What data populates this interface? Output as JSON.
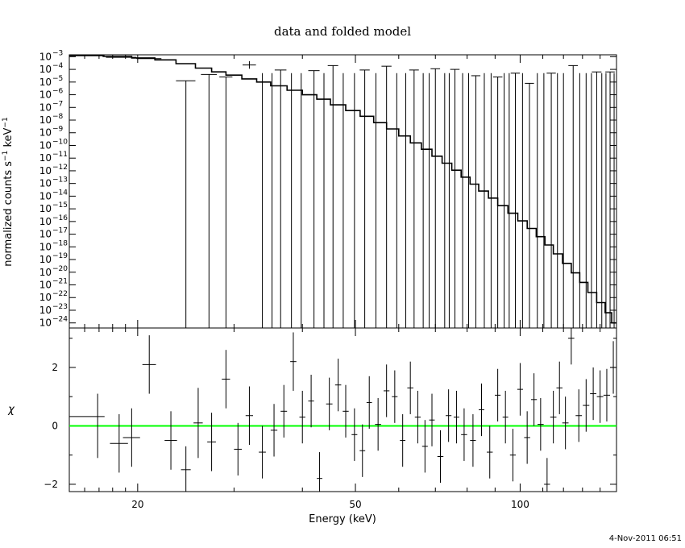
{
  "chart_data": {
    "type": "line",
    "title": "data and folded model",
    "xlabel": "Energy (keV)",
    "x_scale": "log",
    "xlim": [
      15,
      150
    ],
    "x_ticks": [
      20,
      50,
      100
    ],
    "timestamp": "4-Nov-2011 06:51",
    "top_panel": {
      "ylabel": "normalized counts s^-1 keV^-1",
      "ylabel_parts": {
        "a": "normalized counts s",
        "exp1": "−1",
        "b": " keV",
        "exp2": "−1"
      },
      "y_scale": "log",
      "ylim_log10": [
        -24.4,
        -2.85
      ],
      "y_tick_exponents": [
        -3,
        -4,
        -5,
        -6,
        -7,
        -8,
        -9,
        -10,
        -11,
        -12,
        -13,
        -14,
        -15,
        -16,
        -17,
        -18,
        -19,
        -20,
        -21,
        -22,
        -23,
        -24
      ],
      "model_steps": [
        [
          15.0,
          -2.9
        ],
        [
          17.3,
          -2.98
        ],
        [
          19.5,
          -3.1
        ],
        [
          21.5,
          -3.25
        ],
        [
          23.5,
          -3.55
        ],
        [
          25.5,
          -3.9
        ],
        [
          27.3,
          -4.2
        ],
        [
          29.0,
          -4.45
        ],
        [
          31.0,
          -4.75
        ],
        [
          33.0,
          -5.0
        ],
        [
          35.0,
          -5.3
        ],
        [
          37.5,
          -5.65
        ],
        [
          40.0,
          -6.0
        ],
        [
          42.5,
          -6.35
        ],
        [
          45.0,
          -6.8
        ],
        [
          48.0,
          -7.25
        ],
        [
          51.0,
          -7.7
        ],
        [
          54.0,
          -8.2
        ],
        [
          57.0,
          -8.7
        ],
        [
          60.0,
          -9.25
        ],
        [
          63.0,
          -9.8
        ],
        [
          66.0,
          -10.3
        ],
        [
          69.0,
          -10.85
        ],
        [
          72.0,
          -11.4
        ],
        [
          75.0,
          -11.95
        ],
        [
          78.0,
          -12.5
        ],
        [
          81.0,
          -13.05
        ],
        [
          84.0,
          -13.6
        ],
        [
          87.5,
          -14.15
        ],
        [
          91.0,
          -14.75
        ],
        [
          95.0,
          -15.35
        ],
        [
          99.0,
          -15.95
        ],
        [
          103.0,
          -16.55
        ],
        [
          107.0,
          -17.2
        ],
        [
          111.0,
          -17.85
        ],
        [
          115.0,
          -18.55
        ],
        [
          119.5,
          -19.3
        ],
        [
          124.0,
          -20.05
        ],
        [
          128.5,
          -20.8
        ],
        [
          133.0,
          -21.6
        ],
        [
          138.0,
          -22.4
        ],
        [
          143.0,
          -23.2
        ],
        [
          147.0,
          -24.0
        ],
        [
          150.0,
          -24.4
        ]
      ],
      "data_points": [
        {
          "x": 16.2,
          "xerr": 1.2,
          "y": -2.92
        },
        {
          "x": 18.7,
          "xerr": 1.2,
          "y": -3.05
        },
        {
          "x": 21.0,
          "xerr": 1.1,
          "y": -3.15
        },
        {
          "x": 24.5,
          "xerr": 1.0,
          "y": -4.9,
          "ylo": -24.4
        },
        {
          "x": 27.0,
          "xerr": 0.9,
          "y": -4.4,
          "ylo": -24.4
        },
        {
          "x": 29.0,
          "xerr": 0.8,
          "y": -4.6,
          "ylo": -24.4
        },
        {
          "x": 32.0,
          "xerr": 0.9,
          "y": -3.65,
          "ylo": -3.95,
          "yhi": -3.35
        },
        {
          "x": 36.5,
          "xerr": 0.9,
          "y": -4.05,
          "ylo": -24.4
        },
        {
          "x": 42.0,
          "xerr": 1.0,
          "y": -4.1,
          "ylo": -24.4
        },
        {
          "x": 45.5,
          "xerr": 1.0,
          "y": -3.7,
          "ylo": -24.4
        },
        {
          "x": 52.0,
          "xerr": 1.1,
          "y": -4.05,
          "ylo": -24.4
        },
        {
          "x": 57.0,
          "xerr": 1.2,
          "y": -3.75,
          "ylo": -24.4
        },
        {
          "x": 64.0,
          "xerr": 1.3,
          "y": -4.05,
          "ylo": -24.4
        },
        {
          "x": 70.0,
          "xerr": 1.4,
          "y": -3.95,
          "ylo": -24.4
        },
        {
          "x": 76.0,
          "xerr": 1.5,
          "y": -4.0,
          "ylo": -24.4
        },
        {
          "x": 83.0,
          "xerr": 1.6,
          "y": -4.5,
          "ylo": -24.4
        },
        {
          "x": 91.0,
          "xerr": 1.8,
          "y": -4.6,
          "ylo": -24.4
        },
        {
          "x": 98.0,
          "xerr": 1.9,
          "y": -4.3,
          "ylo": -24.4
        },
        {
          "x": 104.0,
          "xerr": 2.0,
          "y": -5.1,
          "ylo": -24.4
        },
        {
          "x": 114.0,
          "xerr": 2.2,
          "y": -4.3,
          "ylo": -24.4
        },
        {
          "x": 125.0,
          "xerr": 2.5,
          "y": -3.7,
          "ylo": -24.4
        },
        {
          "x": 138.0,
          "xerr": 2.8,
          "y": -4.2,
          "ylo": -24.4
        },
        {
          "x": 146.0,
          "xerr": 2.9,
          "y": -4.2,
          "ylo": -24.4
        }
      ],
      "extra_vlines_x": [
        33.8,
        35.2,
        38.2,
        39.8,
        43.8,
        47.5,
        49.8,
        54.5,
        59.5,
        61.8,
        66.5,
        68.2,
        72.8,
        74.2,
        78.5,
        80.5,
        86.0,
        88.5,
        93.5,
        95.5,
        101.0,
        107.5,
        110.5,
        117.0,
        120.0,
        128.5,
        132.0,
        135.0,
        141.0,
        143.5,
        148.5
      ]
    },
    "bottom_panel": {
      "ylabel": "χ",
      "ylim": [
        -2.25,
        3.35
      ],
      "y_ticks": [
        -2,
        0,
        2
      ],
      "zero_line_color": "#00ff00",
      "residuals": [
        {
          "x": 16.2,
          "xerr": 1.2,
          "y": 0.32,
          "yerr": 0.0
        },
        {
          "x": 16.9,
          "xerr": 0.0,
          "y": 0.0,
          "yerr": 1.1
        },
        {
          "x": 18.5,
          "xerr": 0.7,
          "y": -0.6,
          "yerr": 1.0
        },
        {
          "x": 19.5,
          "xerr": 0.7,
          "y": -0.4,
          "yerr": 1.0
        },
        {
          "x": 21.0,
          "xerr": 0.6,
          "y": 2.1,
          "yerr": 1.0
        },
        {
          "x": 23.0,
          "xerr": 0.6,
          "y": -0.5,
          "yerr": 1.0
        },
        {
          "x": 24.5,
          "xerr": 0.5,
          "y": -1.5,
          "yerr": 0.8
        },
        {
          "x": 25.8,
          "xerr": 0.5,
          "y": 0.1,
          "yerr": 1.2
        },
        {
          "x": 27.3,
          "xerr": 0.5,
          "y": -0.55,
          "yerr": 1.0
        },
        {
          "x": 29.0,
          "xerr": 0.5,
          "y": 1.6,
          "yerr": 1.0
        },
        {
          "x": 30.5,
          "xerr": 0.5,
          "y": -0.8,
          "yerr": 0.9
        },
        {
          "x": 32.0,
          "xerr": 0.5,
          "y": 0.35,
          "yerr": 1.0
        },
        {
          "x": 33.8,
          "xerr": 0.5,
          "y": -0.9,
          "yerr": 0.9
        },
        {
          "x": 35.5,
          "xerr": 0.5,
          "y": -0.15,
          "yerr": 0.9
        },
        {
          "x": 37.0,
          "xerr": 0.5,
          "y": 0.5,
          "yerr": 0.9
        },
        {
          "x": 38.5,
          "xerr": 0.5,
          "y": 2.2,
          "yerr": 1.0
        },
        {
          "x": 40.0,
          "xerr": 0.5,
          "y": 0.3,
          "yerr": 0.9
        },
        {
          "x": 41.5,
          "xerr": 0.5,
          "y": 0.85,
          "yerr": 0.9
        },
        {
          "x": 43.0,
          "xerr": 0.5,
          "y": -1.8,
          "yerr": 0.9
        },
        {
          "x": 44.8,
          "xerr": 0.6,
          "y": 0.75,
          "yerr": 0.9
        },
        {
          "x": 46.5,
          "xerr": 0.6,
          "y": 1.4,
          "yerr": 0.9
        },
        {
          "x": 48.0,
          "xerr": 0.6,
          "y": 0.5,
          "yerr": 0.9
        },
        {
          "x": 49.8,
          "xerr": 0.6,
          "y": -0.3,
          "yerr": 0.9
        },
        {
          "x": 51.5,
          "xerr": 0.6,
          "y": -0.85,
          "yerr": 0.9
        },
        {
          "x": 53.0,
          "xerr": 0.6,
          "y": 0.8,
          "yerr": 0.9
        },
        {
          "x": 55.0,
          "xerr": 0.7,
          "y": 0.05,
          "yerr": 0.9
        },
        {
          "x": 57.0,
          "xerr": 0.7,
          "y": 1.2,
          "yerr": 0.9
        },
        {
          "x": 59.0,
          "xerr": 0.7,
          "y": 1.0,
          "yerr": 0.9
        },
        {
          "x": 61.0,
          "xerr": 0.7,
          "y": -0.5,
          "yerr": 0.9
        },
        {
          "x": 63.0,
          "xerr": 0.8,
          "y": 1.3,
          "yerr": 0.9
        },
        {
          "x": 65.0,
          "xerr": 0.8,
          "y": 0.3,
          "yerr": 0.9
        },
        {
          "x": 67.0,
          "xerr": 0.8,
          "y": -0.7,
          "yerr": 0.9
        },
        {
          "x": 69.0,
          "xerr": 0.8,
          "y": 0.2,
          "yerr": 0.9
        },
        {
          "x": 71.5,
          "xerr": 0.9,
          "y": -1.05,
          "yerr": 0.9
        },
        {
          "x": 74.0,
          "xerr": 0.9,
          "y": 0.35,
          "yerr": 0.9
        },
        {
          "x": 76.5,
          "xerr": 0.9,
          "y": 0.3,
          "yerr": 0.9
        },
        {
          "x": 79.0,
          "xerr": 1.0,
          "y": -0.3,
          "yerr": 0.9
        },
        {
          "x": 82.0,
          "xerr": 1.0,
          "y": -0.5,
          "yerr": 0.9
        },
        {
          "x": 85.0,
          "xerr": 1.0,
          "y": 0.55,
          "yerr": 0.9
        },
        {
          "x": 88.0,
          "xerr": 1.1,
          "y": -0.9,
          "yerr": 0.9
        },
        {
          "x": 91.0,
          "xerr": 1.1,
          "y": 1.05,
          "yerr": 0.9
        },
        {
          "x": 94.0,
          "xerr": 1.1,
          "y": 0.3,
          "yerr": 0.9
        },
        {
          "x": 97.0,
          "xerr": 1.2,
          "y": -1.0,
          "yerr": 0.9
        },
        {
          "x": 100.0,
          "xerr": 1.2,
          "y": 1.25,
          "yerr": 0.9
        },
        {
          "x": 103.0,
          "xerr": 1.3,
          "y": -0.4,
          "yerr": 0.9
        },
        {
          "x": 106.0,
          "xerr": 1.3,
          "y": 0.9,
          "yerr": 0.9
        },
        {
          "x": 109.0,
          "xerr": 1.4,
          "y": 0.05,
          "yerr": 0.9
        },
        {
          "x": 112.0,
          "xerr": 1.4,
          "y": -2.0,
          "yerr": 0.9
        },
        {
          "x": 115.0,
          "xerr": 1.5,
          "y": 0.3,
          "yerr": 0.9
        },
        {
          "x": 118.0,
          "xerr": 1.5,
          "y": 1.3,
          "yerr": 0.9
        },
        {
          "x": 121.0,
          "xerr": 1.6,
          "y": 0.1,
          "yerr": 0.9
        },
        {
          "x": 124.0,
          "xerr": 1.6,
          "y": 3.0,
          "yerr": 0.9
        },
        {
          "x": 128.0,
          "xerr": 1.7,
          "y": 0.35,
          "yerr": 0.9
        },
        {
          "x": 132.0,
          "xerr": 1.8,
          "y": 0.7,
          "yerr": 0.9
        },
        {
          "x": 136.0,
          "xerr": 1.8,
          "y": 1.1,
          "yerr": 0.9
        },
        {
          "x": 140.0,
          "xerr": 1.9,
          "y": 1.0,
          "yerr": 0.9
        },
        {
          "x": 144.0,
          "xerr": 2.0,
          "y": 1.05,
          "yerr": 0.9
        },
        {
          "x": 148.0,
          "xerr": 2.0,
          "y": 2.0,
          "yerr": 0.9
        }
      ]
    }
  }
}
